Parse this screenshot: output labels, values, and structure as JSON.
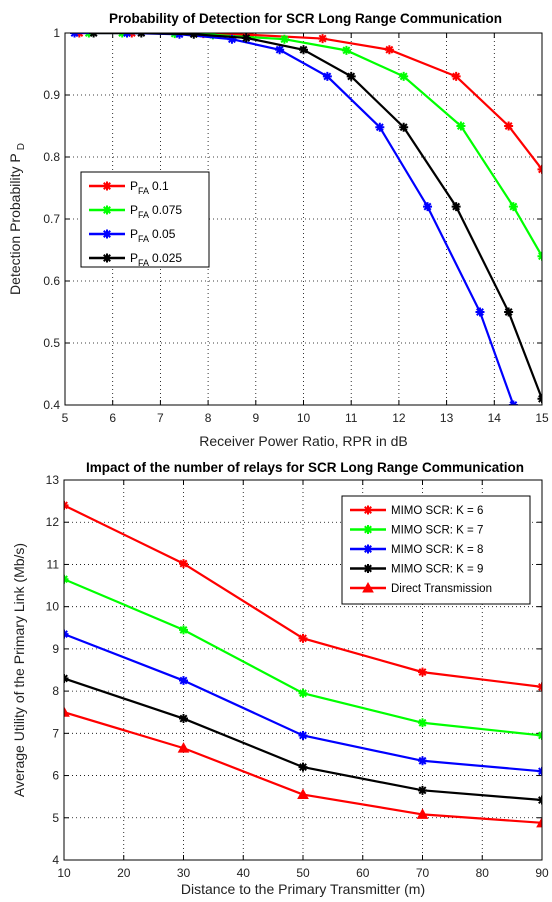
{
  "chart_data": [
    {
      "type": "line",
      "title": "Probability of Detection for SCR Long Range Communication",
      "xlabel": "Receiver Power Ratio, RPR in dB",
      "ylabel": "Detection Probability P",
      "ylabel_sub": "D",
      "xlim": [
        5,
        15
      ],
      "ylim": [
        0.4,
        1.0
      ],
      "xticks": [
        "5",
        "6",
        "7",
        "8",
        "9",
        "10",
        "11",
        "12",
        "13",
        "14",
        "15"
      ],
      "yticks": [
        "0.4",
        "0.5",
        "0.6",
        "0.7",
        "0.8",
        "0.9",
        "1"
      ],
      "grid": true,
      "legend_position": "left",
      "series": [
        {
          "name": "P",
          "name_sub": "FA",
          "name_suffix": "0.1",
          "color": "#ff0000",
          "marker": "star",
          "x": [
            5.3,
            6.4,
            7.9,
            8.9,
            10.4,
            11.8,
            13.2,
            14.3,
            15.0
          ],
          "y": [
            1.0,
            1.0,
            0.999,
            0.997,
            0.991,
            0.973,
            0.93,
            0.85,
            0.78
          ]
        },
        {
          "name": "P",
          "name_sub": "FA",
          "name_suffix": "0.075",
          "color": "#00ff00",
          "marker": "star",
          "x": [
            5.5,
            6.2,
            7.3,
            8.1,
            9.6,
            10.9,
            12.1,
            13.3,
            14.4,
            15.0
          ],
          "y": [
            1.0,
            1.0,
            0.999,
            0.997,
            0.99,
            0.972,
            0.93,
            0.85,
            0.72,
            0.64
          ]
        },
        {
          "name": "P",
          "name_sub": "FA",
          "name_suffix": "0.05",
          "color": "#0000ff",
          "marker": "star",
          "x": [
            5.2,
            6.3,
            7.4,
            8.5,
            9.5,
            10.5,
            11.6,
            12.6,
            13.7,
            14.4
          ],
          "y": [
            1.0,
            1.0,
            0.998,
            0.99,
            0.973,
            0.93,
            0.848,
            0.72,
            0.55,
            0.4
          ]
        },
        {
          "name": "P",
          "name_sub": "FA",
          "name_suffix": "0.025",
          "color": "#000000",
          "marker": "star",
          "x": [
            5.6,
            6.6,
            7.7,
            8.8,
            10.0,
            11.0,
            12.1,
            13.2,
            14.3,
            15.0
          ],
          "y": [
            1.0,
            1.0,
            0.998,
            0.992,
            0.973,
            0.93,
            0.848,
            0.72,
            0.55,
            0.41
          ]
        }
      ]
    },
    {
      "type": "line",
      "title": "Impact of the number of relays for SCR Long Range Communication",
      "xlabel": "Distance to the Primary Transmitter (m)",
      "ylabel": "Average Utility of the Primary Link (Mb/s)",
      "xlim": [
        10,
        90
      ],
      "ylim": [
        4,
        13
      ],
      "xticks": [
        "10",
        "20",
        "30",
        "40",
        "50",
        "60",
        "70",
        "80",
        "90"
      ],
      "yticks": [
        "4",
        "5",
        "6",
        "7",
        "8",
        "9",
        "10",
        "11",
        "12",
        "13"
      ],
      "grid": true,
      "legend_position": "top-right",
      "x": [
        10,
        30,
        50,
        70,
        90
      ],
      "series": [
        {
          "name": "MIMO SCR: K = 6",
          "color": "#ff0000",
          "marker": "star",
          "values": [
            12.4,
            11.02,
            9.25,
            8.45,
            8.1
          ]
        },
        {
          "name": "MIMO SCR: K = 7",
          "color": "#00ff00",
          "marker": "star",
          "values": [
            10.65,
            9.45,
            7.95,
            7.25,
            6.95
          ]
        },
        {
          "name": "MIMO SCR: K = 8",
          "color": "#0000ff",
          "marker": "star",
          "values": [
            9.35,
            8.25,
            6.95,
            6.35,
            6.1
          ]
        },
        {
          "name": "MIMO SCR: K = 9",
          "color": "#000000",
          "marker": "star",
          "values": [
            8.3,
            7.35,
            6.2,
            5.65,
            5.42
          ]
        },
        {
          "name": "Direct Transmission",
          "color": "#ff0000",
          "marker": "triangle",
          "values": [
            7.5,
            6.65,
            5.55,
            5.08,
            4.88
          ]
        }
      ]
    }
  ]
}
